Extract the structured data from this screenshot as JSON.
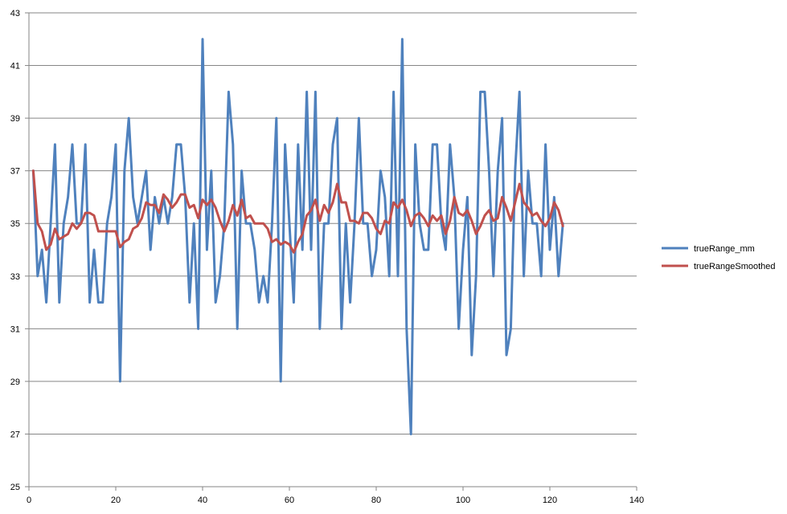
{
  "chart_data": {
    "type": "line",
    "title": "",
    "xlabel": "",
    "ylabel": "",
    "xlim": [
      0,
      140
    ],
    "ylim": [
      25,
      43
    ],
    "x_ticks": [
      0,
      20,
      40,
      60,
      80,
      100,
      120,
      140
    ],
    "y_ticks": [
      25,
      27,
      29,
      31,
      33,
      35,
      37,
      39,
      41,
      43
    ],
    "grid": {
      "horizontal": true,
      "vertical": false
    },
    "legend_position": "right",
    "x": [
      1,
      2,
      3,
      4,
      5,
      6,
      7,
      8,
      9,
      10,
      11,
      12,
      13,
      14,
      15,
      16,
      17,
      18,
      19,
      20,
      21,
      22,
      23,
      24,
      25,
      26,
      27,
      28,
      29,
      30,
      31,
      32,
      33,
      34,
      35,
      36,
      37,
      38,
      39,
      40,
      41,
      42,
      43,
      44,
      45,
      46,
      47,
      48,
      49,
      50,
      51,
      52,
      53,
      54,
      55,
      56,
      57,
      58,
      59,
      60,
      61,
      62,
      63,
      64,
      65,
      66,
      67,
      68,
      69,
      70,
      71,
      72,
      73,
      74,
      75,
      76,
      77,
      78,
      79,
      80,
      81,
      82,
      83,
      84,
      85,
      86,
      87,
      88,
      89,
      90,
      91,
      92,
      93,
      94,
      95,
      96,
      97,
      98,
      99,
      100,
      101,
      102,
      103,
      104,
      105,
      106,
      107,
      108,
      109,
      110,
      111,
      112,
      113,
      114,
      115,
      116,
      117,
      118,
      119,
      120,
      121,
      122,
      123
    ],
    "series": [
      {
        "name": "trueRange_mm",
        "color": "#4F81BD",
        "values": [
          37,
          33,
          34,
          32,
          35,
          38,
          32,
          35,
          36,
          38,
          35,
          35,
          38,
          32,
          34,
          32,
          32,
          35,
          36,
          38,
          29,
          37,
          39,
          36,
          35,
          36,
          37,
          34,
          36,
          35,
          36,
          35,
          36,
          38,
          38,
          36,
          32,
          35,
          31,
          42,
          34,
          37,
          32,
          33,
          35,
          40,
          38,
          31,
          37,
          35,
          35,
          34,
          32,
          33,
          32,
          35,
          39,
          29,
          38,
          35,
          32,
          38,
          34,
          40,
          34,
          40,
          31,
          35,
          35,
          38,
          39,
          31,
          35,
          32,
          35,
          39,
          35,
          35,
          33,
          34,
          37,
          36,
          33,
          40,
          33,
          42,
          31,
          27,
          38,
          35,
          34,
          34,
          38,
          38,
          35,
          34,
          38,
          36,
          31,
          34,
          36,
          30,
          33,
          40,
          40,
          37,
          33,
          37,
          39,
          30,
          31,
          37,
          40,
          33,
          37,
          35,
          35,
          33,
          38,
          34,
          36,
          33,
          35
        ]
      },
      {
        "name": "trueRangeSmoothed",
        "color": "#C0504D",
        "values": [
          37,
          35,
          34.7,
          34,
          34.2,
          34.8,
          34.4,
          34.5,
          34.6,
          35,
          34.8,
          35,
          35.4,
          35.4,
          35.3,
          34.7,
          34.7,
          34.7,
          34.7,
          34.7,
          34.1,
          34.3,
          34.4,
          34.8,
          34.9,
          35.2,
          35.8,
          35.7,
          35.7,
          35.4,
          36.1,
          35.9,
          35.6,
          35.8,
          36.1,
          36.1,
          35.6,
          35.7,
          35.2,
          35.9,
          35.7,
          35.9,
          35.6,
          35.1,
          34.7,
          35.1,
          35.7,
          35.3,
          35.9,
          35.2,
          35.3,
          35,
          35,
          35,
          34.8,
          34.3,
          34.4,
          34.2,
          34.3,
          34.2,
          33.9,
          34.3,
          34.6,
          35.3,
          35.5,
          35.9,
          35.1,
          35.7,
          35.4,
          35.8,
          36.5,
          35.8,
          35.8,
          35.1,
          35.1,
          35,
          35.4,
          35.4,
          35.2,
          34.8,
          34.6,
          35.1,
          35,
          35.8,
          35.6,
          35.9,
          35.5,
          34.9,
          35.3,
          35.4,
          35.2,
          34.9,
          35.3,
          35.1,
          35.3,
          34.6,
          35.1,
          36,
          35.4,
          35.3,
          35.5,
          35.1,
          34.6,
          34.9,
          35.3,
          35.5,
          35.1,
          35.2,
          36,
          35.6,
          35.1,
          35.8,
          36.5,
          35.8,
          35.6,
          35.3,
          35.4,
          35.1,
          34.9,
          35.2,
          35.8,
          35.5,
          34.9
        ]
      }
    ]
  }
}
